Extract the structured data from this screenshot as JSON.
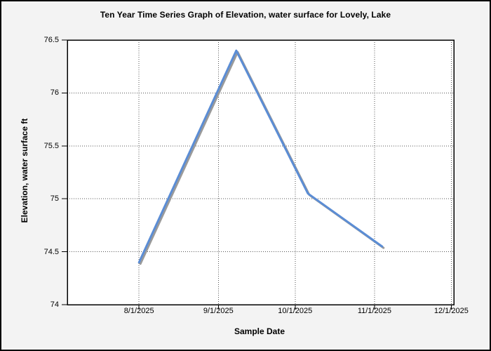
{
  "page": {
    "background": "#f3f3f3",
    "frame_border_color": "#000000"
  },
  "chart_data": {
    "type": "line",
    "title": "Ten Year Time Series Graph of Elevation, water surface for Lovely, Lake",
    "xlabel": "Sample Date",
    "ylabel": "Elevation, water surface ft",
    "x_ticks": [
      "8/1/2025",
      "9/1/2025",
      "10/1/2025",
      "11/1/2025",
      "12/1/2025"
    ],
    "y_ticks": [
      {
        "label": "76.5",
        "value": 76.5
      },
      {
        "label": "76",
        "value": 76.0
      },
      {
        "label": "75.5",
        "value": 75.5
      },
      {
        "label": "75",
        "value": 75.0
      },
      {
        "label": "74.5",
        "value": 74.5
      },
      {
        "label": "74",
        "value": 74.0
      }
    ],
    "ylim": [
      74,
      76.5
    ],
    "x_domain": [
      "7/4/2025",
      "12/2/2025"
    ],
    "grid": true,
    "legend": false,
    "series": [
      {
        "name": "Elevation, water surface ft",
        "points": [
          {
            "date": "8/1/2025",
            "value": 74.4
          },
          {
            "date": "9/8/2025",
            "value": 76.4
          },
          {
            "date": "10/6/2025",
            "value": 75.05
          },
          {
            "date": "11/4/2025",
            "value": 74.55
          }
        ]
      }
    ],
    "colors": {
      "line": "#5b8dd5",
      "line_shadow": "#9a9a9a",
      "plot_background": "#ffffff",
      "grid": "#555555",
      "axis": "#000000",
      "text": "#000000"
    }
  }
}
